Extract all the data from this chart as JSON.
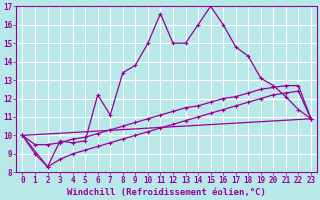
{
  "xlabel": "Windchill (Refroidissement éolien,°C)",
  "background_color": "#b8e8e8",
  "grid_color": "#ffffff",
  "line_color": "#990099",
  "xlim": [
    -0.5,
    23.5
  ],
  "ylim": [
    8,
    17
  ],
  "xticks": [
    0,
    1,
    2,
    3,
    4,
    5,
    6,
    7,
    8,
    9,
    10,
    11,
    12,
    13,
    14,
    15,
    16,
    17,
    18,
    19,
    20,
    21,
    22,
    23
  ],
  "yticks": [
    8,
    9,
    10,
    11,
    12,
    13,
    14,
    15,
    16,
    17
  ],
  "line1_x": [
    0,
    1,
    2,
    3,
    4,
    5,
    6,
    7,
    8,
    9,
    10,
    11,
    12,
    13,
    14,
    15,
    16,
    17,
    18,
    19,
    20,
    21,
    22,
    23
  ],
  "line1_y": [
    10.0,
    9.0,
    8.3,
    9.7,
    9.6,
    9.7,
    12.2,
    11.1,
    13.4,
    13.8,
    15.0,
    16.6,
    15.0,
    15.0,
    16.0,
    17.0,
    16.0,
    14.8,
    14.3,
    13.1,
    12.7,
    12.1,
    11.4,
    10.9
  ],
  "line2_x": [
    0,
    1,
    2,
    3,
    4,
    5,
    6,
    7,
    8,
    9,
    10,
    11,
    12,
    13,
    14,
    15,
    16,
    17,
    18,
    19,
    20,
    21,
    22,
    23
  ],
  "line2_y": [
    10.0,
    9.5,
    9.5,
    9.6,
    9.8,
    9.9,
    10.1,
    10.3,
    10.5,
    10.7,
    10.9,
    11.1,
    11.3,
    11.5,
    11.6,
    11.8,
    12.0,
    12.1,
    12.3,
    12.5,
    12.6,
    12.7,
    12.7,
    10.9
  ],
  "line3_x": [
    0,
    2,
    3,
    4,
    5,
    6,
    7,
    8,
    9,
    10,
    11,
    12,
    13,
    14,
    15,
    16,
    17,
    18,
    19,
    20,
    21,
    22,
    23
  ],
  "line3_y": [
    10.0,
    8.3,
    8.7,
    9.0,
    9.2,
    9.4,
    9.6,
    9.8,
    10.0,
    10.2,
    10.4,
    10.6,
    10.8,
    11.0,
    11.2,
    11.4,
    11.6,
    11.8,
    12.0,
    12.2,
    12.3,
    12.4,
    10.9
  ],
  "line4_x": [
    0,
    23
  ],
  "line4_y": [
    10.0,
    10.9
  ],
  "marker_size": 2.5,
  "line_width": 0.9,
  "tick_fontsize": 5.5,
  "xlabel_fontsize": 6.5
}
